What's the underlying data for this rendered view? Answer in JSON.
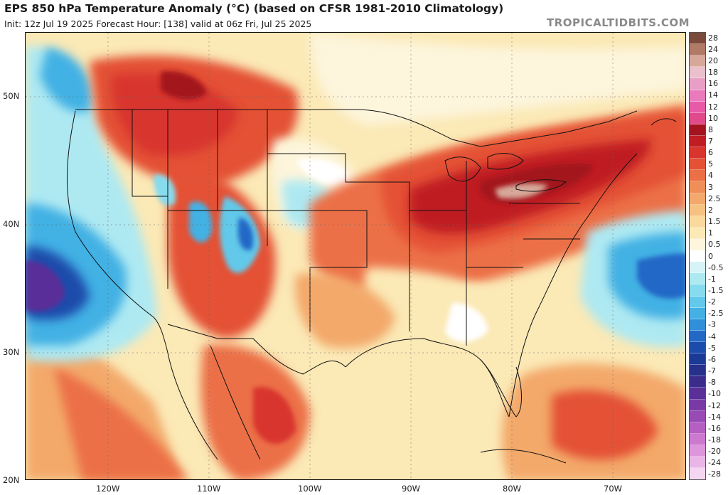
{
  "header": {
    "title": "EPS 850 hPa Temperature Anomaly (°C) (based on CFSR 1981-2010 Climatology)",
    "subtitle": "Init: 12z Jul 19 2025   Forecast Hour: [138]   valid at 06z Fri, Jul 25 2025",
    "credit": "TROPICALTIDBITS.COM"
  },
  "map": {
    "lat_labels": [
      "50N",
      "40N",
      "30N",
      "20N"
    ],
    "lon_labels": [
      "120W",
      "110W",
      "100W",
      "90W",
      "80W",
      "70W"
    ]
  },
  "colorbar": {
    "labels": [
      "28",
      "24",
      "20",
      "18",
      "16",
      "14",
      "12",
      "10",
      "8",
      "7",
      "6",
      "5",
      "4",
      "3",
      "2.5",
      "2",
      "1.5",
      "1",
      "0.5",
      "0",
      "-0.5",
      "-1",
      "-1.5",
      "-2",
      "-2.5",
      "-3",
      "-4",
      "-5",
      "-6",
      "-7",
      "-8",
      "-10",
      "-12",
      "-14",
      "-16",
      "-18",
      "-20",
      "-24",
      "-28"
    ],
    "colors": [
      "#7b4a3a",
      "#b07a64",
      "#d7a89a",
      "#e9c0cc",
      "#e99ec7",
      "#e97bbd",
      "#e85aa8",
      "#e14a8a",
      "#a3141e",
      "#bf1c24",
      "#d8352f",
      "#e45135",
      "#ec7046",
      "#f08e58",
      "#f3a96b",
      "#f6c282",
      "#f9d99c",
      "#fbe9b6",
      "#fdf5dc",
      "#ffffff",
      "#d6f3f7",
      "#aee9f2",
      "#86dbee",
      "#62c9ea",
      "#43b1e4",
      "#2f8fd9",
      "#2468c6",
      "#1c4cab",
      "#1b3a96",
      "#27308a",
      "#3b2c8c",
      "#5a2f98",
      "#7a3aa6",
      "#984bb4",
      "#b55fc2",
      "#cc79cf",
      "#dd96db",
      "#eab6e7",
      "#f5d6f2"
    ]
  },
  "regions": {
    "west_coast_cold": "-3",
    "northeast_warm": "6",
    "atlantic_cold": "-2.5"
  }
}
